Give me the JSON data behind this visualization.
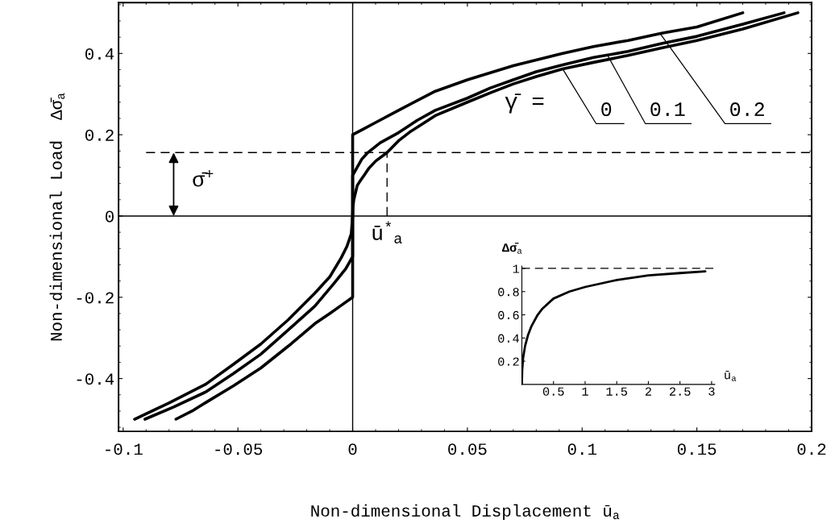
{
  "chart_data": [
    {
      "type": "line",
      "xlabel": "Non-dimensional Displacement ū$_{a}$",
      "ylabel": "Non-dimensional Load  Δσ̄$_{a}$",
      "xlim": [
        -0.102,
        0.2
      ],
      "ylim": [
        -0.53,
        0.525
      ],
      "xticks": [
        -0.1,
        -0.05,
        0,
        0.05,
        0.1,
        0.15,
        0.2
      ],
      "yticks": [
        -0.4,
        -0.2,
        0,
        0.2,
        0.4
      ],
      "series": [
        {
          "name": "0",
          "color": "#000000",
          "x": [
            -0.095,
            -0.08,
            -0.064,
            -0.052,
            -0.04,
            -0.028,
            -0.0165,
            -0.01,
            -0.005,
            -0.0025,
            -0.0006,
            0,
            0.0001,
            0.0005,
            0.002,
            0.0035,
            0.005,
            0.007,
            0.01,
            0.015,
            0.02,
            0.025,
            0.03,
            0.036,
            0.05,
            0.06,
            0.07,
            0.08,
            0.0915,
            0.105,
            0.12,
            0.135,
            0.15,
            0.17,
            0.194
          ],
          "values": [
            -0.5,
            -0.46,
            -0.414,
            -0.365,
            -0.315,
            -0.255,
            -0.19,
            -0.15,
            -0.103,
            -0.075,
            -0.044,
            0,
            0.02,
            0.04,
            0.075,
            0.088,
            0.1,
            0.117,
            0.135,
            0.156,
            0.185,
            0.207,
            0.225,
            0.247,
            0.28,
            0.303,
            0.325,
            0.343,
            0.362,
            0.378,
            0.395,
            0.414,
            0.432,
            0.46,
            0.5
          ]
        },
        {
          "name": "0.1",
          "color": "#000000",
          "x": [
            -0.0905,
            -0.078,
            -0.064,
            -0.052,
            -0.04,
            -0.028,
            -0.0165,
            -0.008,
            -0.003,
            0,
            0,
            0.002,
            0.004,
            0.0066,
            0.012,
            0.02,
            0.028,
            0.036,
            0.05,
            0.06,
            0.07,
            0.08,
            0.0915,
            0.105,
            0.12,
            0.135,
            0.15,
            0.17,
            0.188
          ],
          "values": [
            -0.5,
            -0.47,
            -0.433,
            -0.388,
            -0.34,
            -0.28,
            -0.222,
            -0.165,
            -0.13,
            -0.1,
            0.1,
            0.12,
            0.14,
            0.156,
            0.18,
            0.205,
            0.235,
            0.26,
            0.29,
            0.315,
            0.335,
            0.355,
            0.372,
            0.39,
            0.405,
            0.425,
            0.442,
            0.472,
            0.5
          ]
        },
        {
          "name": "0.2",
          "color": "#000000",
          "x": [
            -0.077,
            -0.07,
            -0.064,
            -0.052,
            -0.04,
            -0.028,
            -0.0165,
            -0.01,
            -0.005,
            0,
            0,
            0.005,
            0.01,
            0.02,
            0.036,
            0.05,
            0.07,
            0.0915,
            0.105,
            0.12,
            0.135,
            0.15,
            0.17
          ],
          "values": [
            -0.5,
            -0.48,
            -0.459,
            -0.418,
            -0.374,
            -0.32,
            -0.265,
            -0.24,
            -0.22,
            -0.2,
            0.2,
            0.215,
            0.23,
            0.26,
            0.307,
            0.335,
            0.37,
            0.4,
            0.417,
            0.432,
            0.45,
            0.465,
            0.5
          ]
        },
        {
          "color": "#000000",
          "line_style": "dashed",
          "x": [
            -0.09,
            0.2
          ],
          "values": [
            0.156,
            0.156
          ]
        },
        {
          "color": "#000000",
          "line_style": "dashed",
          "x": [
            0.015,
            0.015
          ],
          "values": [
            0,
            0.156
          ]
        }
      ],
      "ref_lines": [
        {
          "axis": "y",
          "value": 0
        },
        {
          "axis": "x",
          "value": 0
        }
      ],
      "annotations": [
        {
          "text": "σ̄$^{+}$",
          "x": -0.078,
          "y": 0.156
        },
        {
          "text": "ū$^{*}$$_{a}$",
          "x": 0.015,
          "y": 0
        },
        "γ̄ ="
      ]
    },
    {
      "type": "line",
      "xlabel": "ū$_{a}$",
      "ylabel": "Δσ̄$_{a}$",
      "xlim": [
        0,
        3.05
      ],
      "ylim": [
        0,
        1.02
      ],
      "xticks": [
        0.5,
        1,
        1.5,
        2,
        2.5,
        3
      ],
      "yticks": [
        0.2,
        0.4,
        0.6,
        0.8,
        1
      ],
      "series": [
        {
          "color": "#000000",
          "x": [
            0,
            0.005,
            0.02,
            0.05,
            0.1,
            0.15,
            0.25,
            0.32,
            0.5,
            0.75,
            1,
            1.5,
            2,
            2.5,
            2.9
          ],
          "values": [
            0,
            0.12,
            0.23,
            0.33,
            0.43,
            0.5,
            0.6,
            0.65,
            0.74,
            0.8,
            0.84,
            0.9,
            0.94,
            0.96,
            0.975
          ]
        }
      ],
      "ref_lines": [
        {
          "axis": "y",
          "value": 1,
          "line_style": "dashed"
        }
      ]
    }
  ]
}
